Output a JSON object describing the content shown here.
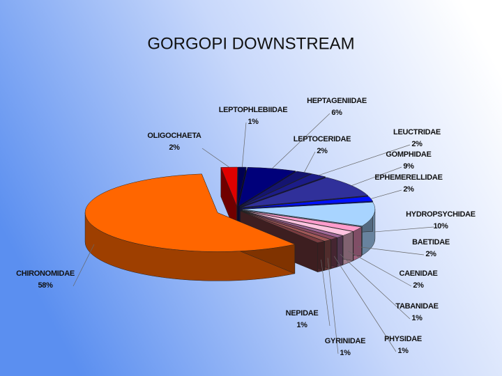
{
  "chart_data": {
    "type": "pie",
    "title": "GORGOPI DOWNSTREAM",
    "categories": [
      "OLIGOCHAETA",
      "LEPTOPHLEBIIDAE",
      "HEPTAGENIIDAE",
      "LEPTOCERIDAE",
      "LEUCTRIDAE",
      "GOMPHIDAE",
      "EPHEMERELLIDAE",
      "HYDROPSYCHIDAE",
      "BAETIDAE",
      "CAENIDAE",
      "TABANIDAE",
      "PHYSIDAE",
      "GYRINIDAE",
      "NEPIDAE",
      "CHIRONOMIDAE"
    ],
    "values": [
      2,
      1,
      6,
      2,
      2,
      9,
      2,
      10,
      2,
      2,
      1,
      1,
      1,
      1,
      58
    ],
    "value_labels": [
      "2%",
      "1%",
      "6%",
      "2%",
      "2%",
      "9%",
      "2%",
      "10%",
      "2%",
      "2%",
      "1%",
      "1%",
      "1%",
      "1%",
      "58%"
    ],
    "colors": [
      "#e00000",
      "#000050",
      "#00007a",
      "#141470",
      "#1c1c88",
      "#30309a",
      "#0010ff",
      "#a8d4ff",
      "#ff9ccc",
      "#ffc4e0",
      "#a06a9a",
      "#8a4a62",
      "#a05858",
      "#7a3c40",
      "#ff6600"
    ]
  }
}
